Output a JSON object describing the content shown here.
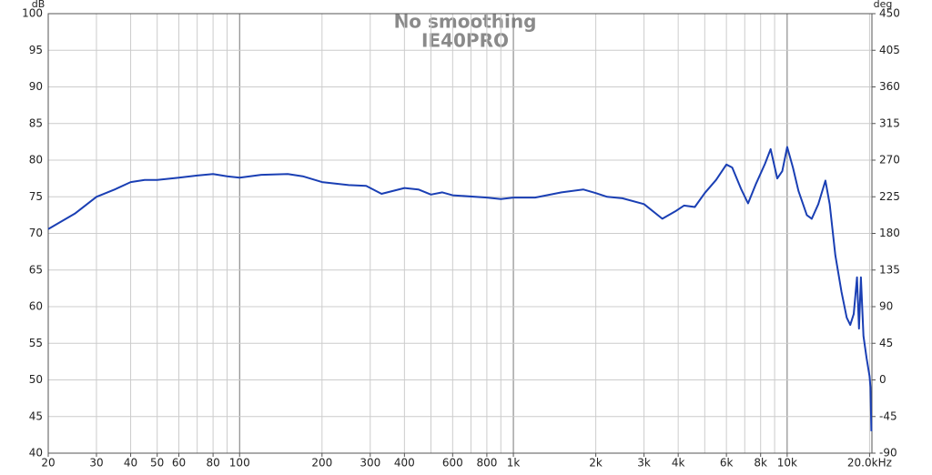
{
  "chart_data": {
    "type": "line",
    "title": "No smoothing",
    "subtitle": "IE40PRO",
    "ylabel": "dB",
    "y2label": "deg",
    "xscale": "log",
    "grid": true,
    "xlim": [
      20,
      20400
    ],
    "ylim": [
      40,
      100
    ],
    "y2lim": [
      -90,
      450
    ],
    "xticks": [
      20,
      30,
      40,
      50,
      60,
      80,
      100,
      200,
      300,
      400,
      600,
      800,
      {
        "value": 1000,
        "label": "1k"
      },
      {
        "value": 2000,
        "label": "2k"
      },
      {
        "value": 3000,
        "label": "3k"
      },
      {
        "value": 4000,
        "label": "4k"
      },
      {
        "value": 6000,
        "label": "6k"
      },
      {
        "value": 8000,
        "label": "8k"
      },
      {
        "value": 10000,
        "label": "10k"
      },
      {
        "value": 20000,
        "label": "20.0kHz"
      }
    ],
    "xgrid": [
      20,
      30,
      40,
      50,
      60,
      70,
      80,
      90,
      100,
      200,
      300,
      400,
      500,
      600,
      700,
      800,
      900,
      1000,
      2000,
      3000,
      4000,
      5000,
      6000,
      7000,
      8000,
      9000,
      10000,
      20000
    ],
    "yticks": [
      40,
      45,
      50,
      55,
      60,
      65,
      70,
      75,
      80,
      85,
      90,
      95,
      100
    ],
    "y2ticks": [
      -90,
      -45,
      0,
      45,
      90,
      135,
      180,
      225,
      270,
      315,
      360,
      405,
      450
    ],
    "series": [
      {
        "name": "IE40PRO",
        "color": "#1a3fb4",
        "x": [
          20,
          25,
          30,
          35,
          40,
          45,
          50,
          60,
          70,
          80,
          90,
          100,
          120,
          150,
          170,
          200,
          250,
          290,
          330,
          400,
          450,
          500,
          550,
          600,
          800,
          900,
          1000,
          1200,
          1500,
          1800,
          2000,
          2200,
          2500,
          3000,
          3500,
          3900,
          4200,
          4600,
          5000,
          5500,
          6000,
          6300,
          6800,
          7200,
          7700,
          8300,
          8700,
          9200,
          9600,
          10000,
          10500,
          11000,
          11800,
          12300,
          13000,
          13800,
          14300,
          15000,
          15800,
          16500,
          17000,
          17500,
          18000,
          18300,
          18600,
          19000,
          19500,
          20000,
          20150,
          20300
        ],
        "values": [
          70.6,
          72.7,
          75.0,
          76.0,
          77.0,
          77.3,
          77.3,
          77.6,
          77.9,
          78.1,
          77.8,
          77.6,
          78.0,
          78.1,
          77.8,
          77.0,
          76.6,
          76.5,
          75.4,
          76.2,
          76.0,
          75.3,
          75.6,
          75.2,
          74.9,
          74.7,
          74.9,
          74.9,
          75.6,
          76.0,
          75.5,
          75.0,
          74.8,
          74.0,
          72.0,
          73.0,
          73.8,
          73.6,
          75.5,
          77.3,
          79.4,
          79.0,
          76.0,
          74.1,
          76.8,
          79.5,
          81.5,
          77.5,
          78.5,
          81.8,
          79.0,
          75.8,
          72.5,
          72.0,
          74.0,
          77.2,
          74.0,
          67.0,
          62.0,
          58.5,
          57.5,
          59.0,
          64.0,
          57.0,
          64.0,
          56.0,
          53.0,
          50.5,
          49.0,
          43.0
        ]
      }
    ]
  }
}
